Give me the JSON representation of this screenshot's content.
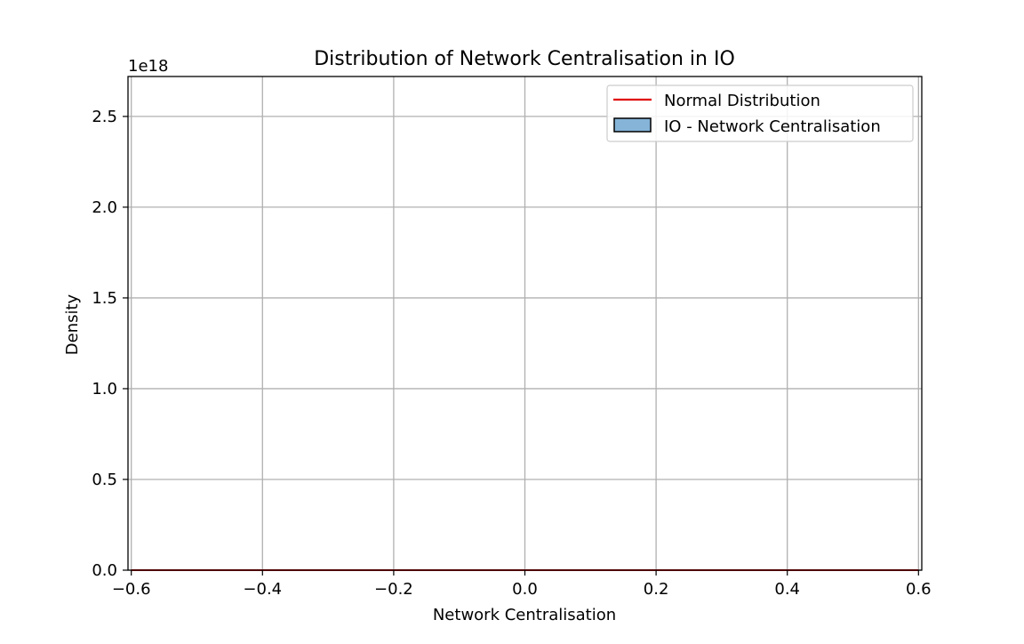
{
  "chart_data": {
    "type": "histogram",
    "title": "Distribution of Network Centralisation in IO",
    "xlabel": "Network Centralisation",
    "ylabel": "Density",
    "y_offset_text": "1e18",
    "xlim": [
      -0.605,
      0.605
    ],
    "ylim": [
      0,
      2.72
    ],
    "y_scale_multiplier": 1e+18,
    "x_ticks": [
      -0.6,
      -0.4,
      -0.2,
      0.0,
      0.2,
      0.4,
      0.6
    ],
    "x_tick_labels": [
      "−0.6",
      "−0.4",
      "−0.2",
      "0.0",
      "0.2",
      "0.4",
      "0.6"
    ],
    "y_ticks": [
      0.0,
      0.5,
      1.0,
      1.5,
      2.0,
      2.5
    ],
    "y_tick_labels": [
      "0.0",
      "0.5",
      "1.0",
      "1.5",
      "2.0",
      "2.5"
    ],
    "grid": true,
    "legend_position": "upper right",
    "series": [
      {
        "name": "Normal Distribution",
        "kind": "line",
        "color": "#e00000",
        "x": [
          -0.6,
          0.6
        ],
        "y": [
          0.0,
          0.0
        ]
      },
      {
        "name": "IO - Network Centralisation",
        "kind": "histogram",
        "color": "#85b4d8",
        "edgecolor": "#000000",
        "bins": [
          {
            "x0": -0.6,
            "x1": 0.6,
            "density": 0.0
          }
        ]
      }
    ]
  }
}
